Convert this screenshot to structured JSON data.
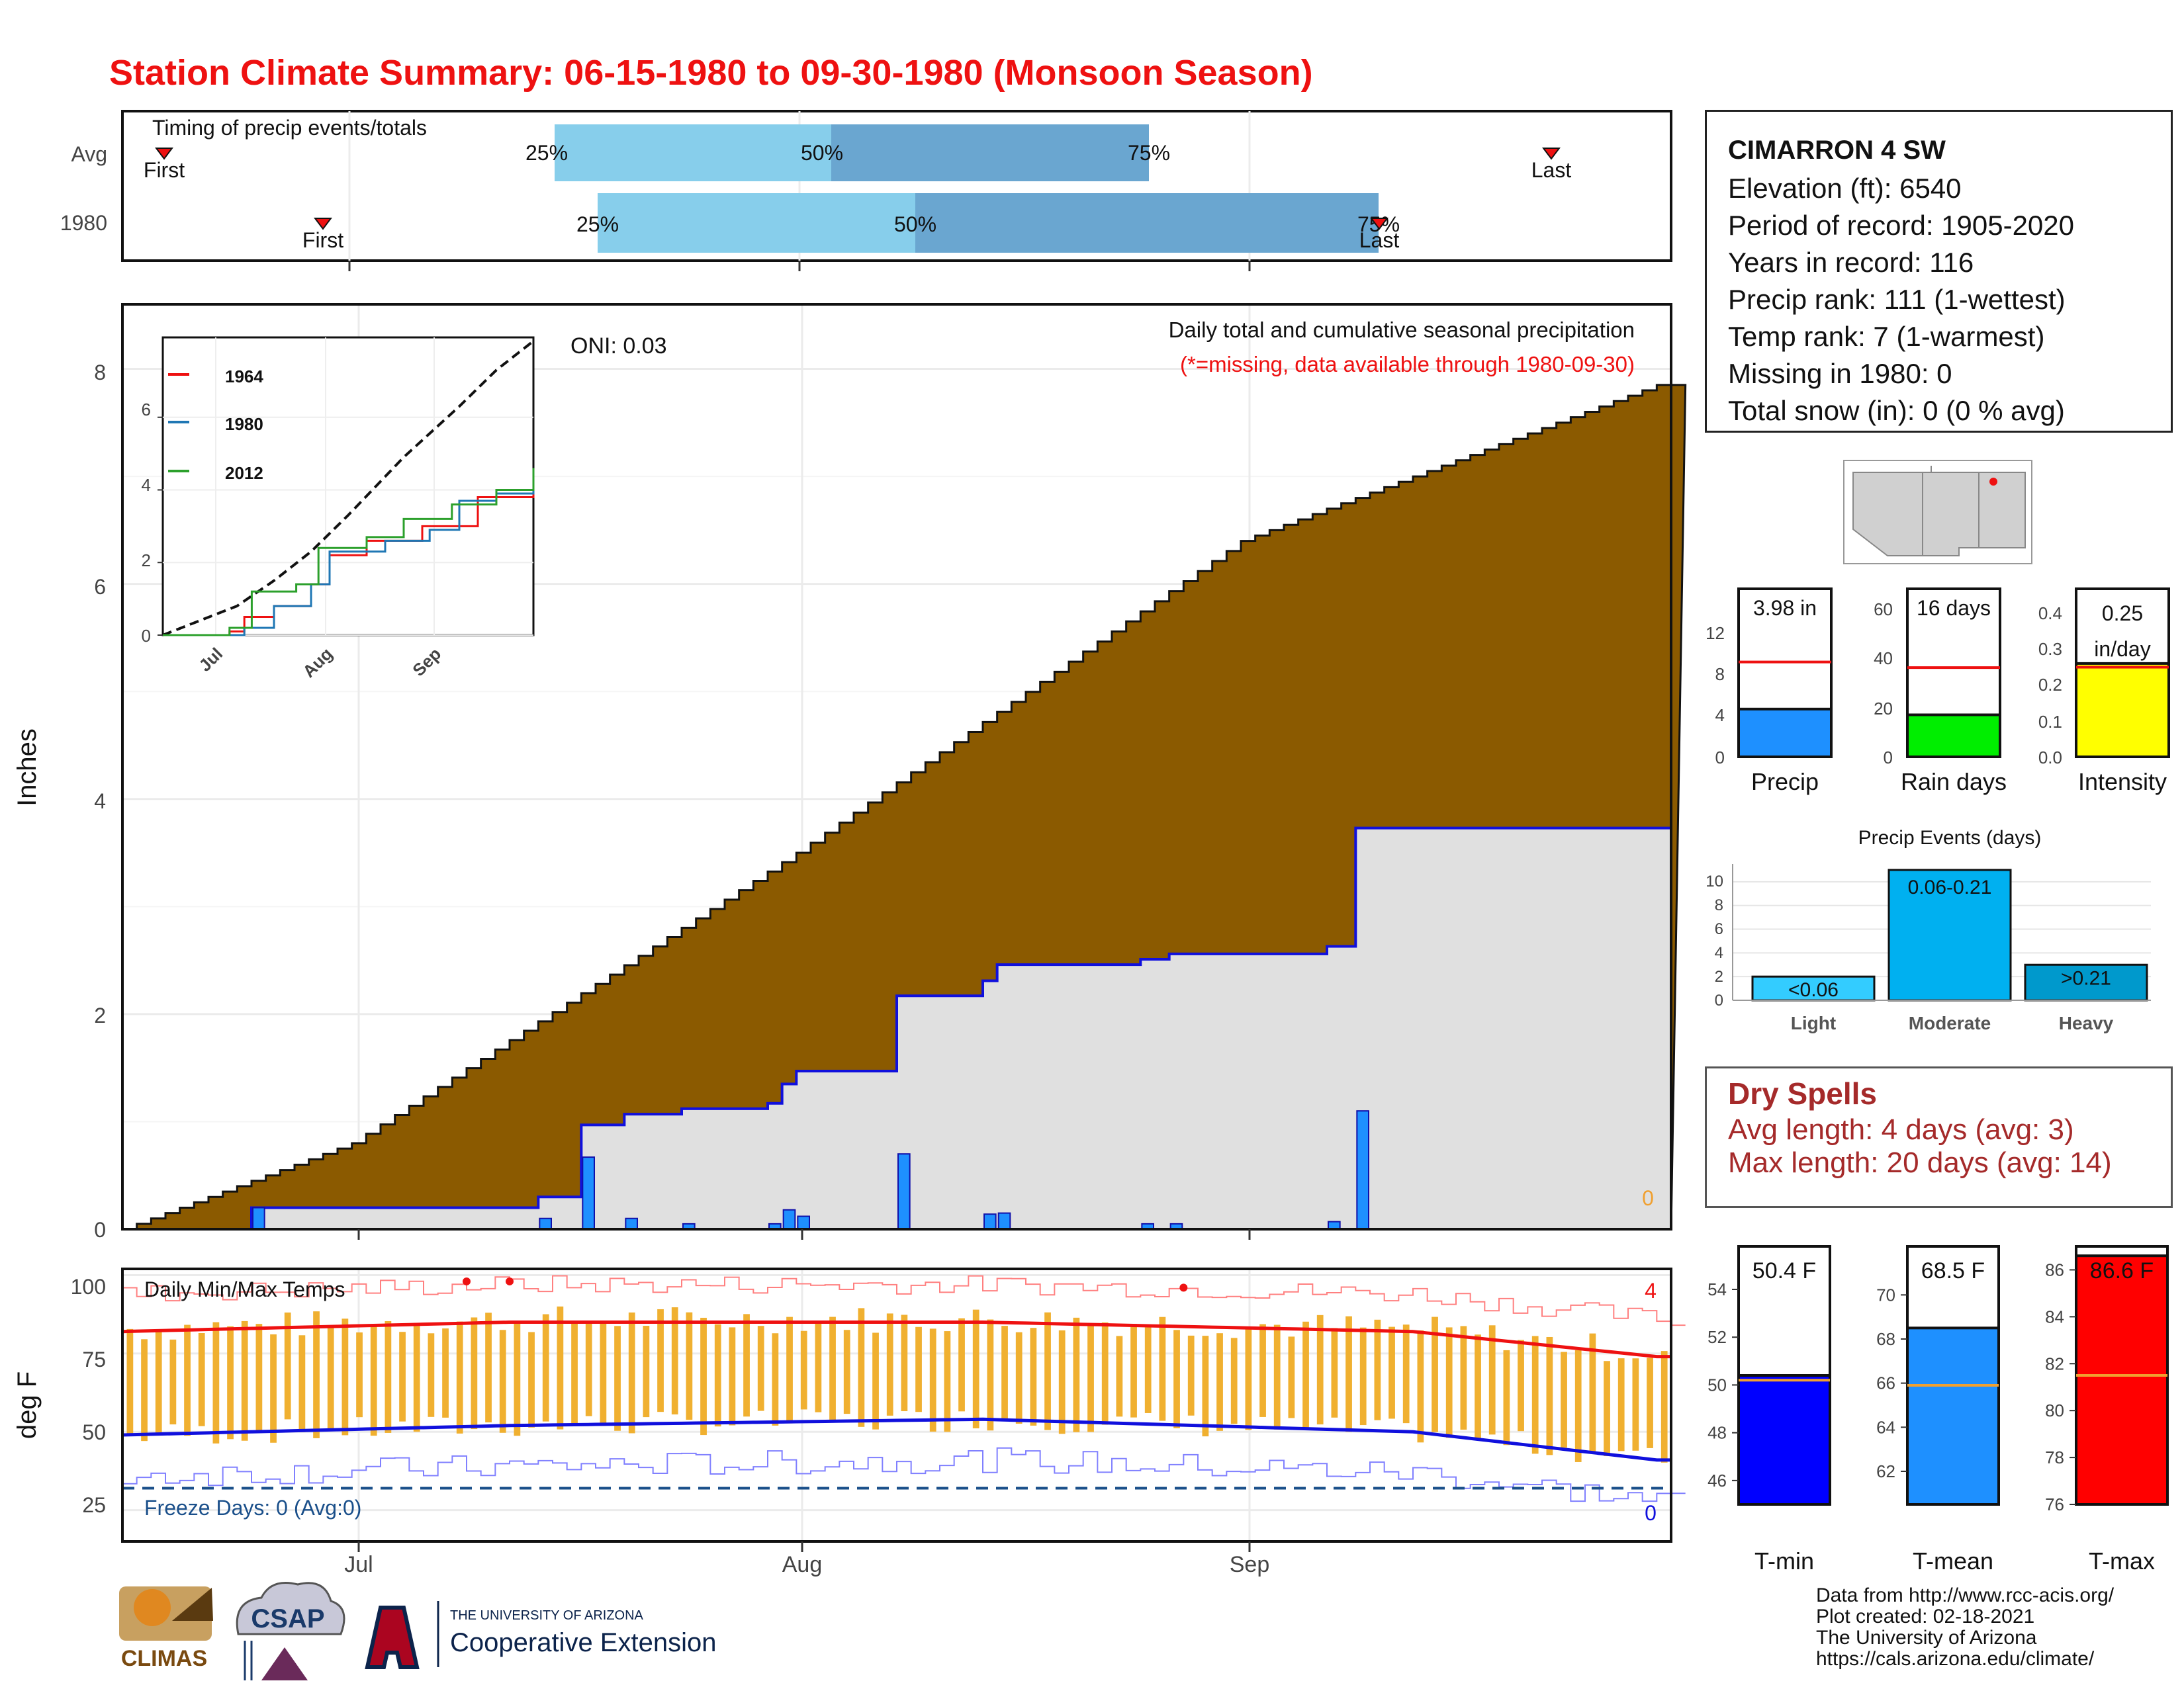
{
  "title": "Station Climate Summary: 06-15-1980 to 09-30-1980 (Monsoon Season)",
  "colors": {
    "title": "#ee1111",
    "cumulative_fill": "#8b5a00",
    "year_fill": "#e0e0e0",
    "year_line": "#1010dd",
    "daily_bar": "#1e90ff",
    "quartile_light": "#87ceeb",
    "quartile_dark": "#6aa6d0",
    "tmax": "#ee1111",
    "tmin": "#1010dd",
    "temp_bar": "#f0b030"
  },
  "station": {
    "name": "CIMARRON 4 SW",
    "lines": [
      "Elevation (ft): 6540",
      "Period of record: 1905-2020",
      "Years in record: 116",
      "Precip rank: 111 (1-wettest)",
      "Temp rank: 7 (1-warmest)",
      "Missing in 1980: 0",
      "Total snow (in): 0 (0 % avg)"
    ]
  },
  "timing": {
    "caption": "Timing of precip events/totals",
    "rows": [
      {
        "label": "Avg",
        "first": "First",
        "last": "Last",
        "q25": "25%",
        "q50": "50%",
        "q75": "75%"
      },
      {
        "label": "1980",
        "first": "First",
        "last": "Last",
        "q25": "25%",
        "q50": "50%",
        "q75": "75%"
      }
    ]
  },
  "main": {
    "ylabel": "Inches",
    "yticks": [
      "0",
      "2",
      "4",
      "6",
      "8"
    ],
    "oni": "ONI: 0.03",
    "caption1": "Daily total and cumulative seasonal precipitation",
    "caption2": "(*=missing, data available through 1980-09-30)",
    "missing_count": "0",
    "xticks": [
      "Jul",
      "Aug",
      "Sep"
    ]
  },
  "inset": {
    "legend": [
      "1964",
      "1980",
      "2012"
    ],
    "legend_colors": [
      "#ee1111",
      "#1f77b4",
      "#2ca02c"
    ],
    "yticks": [
      "0",
      "2",
      "4",
      "6"
    ],
    "xticks": [
      "Jul",
      "Aug",
      "Sep"
    ]
  },
  "temps": {
    "ylabel": "deg F",
    "caption": "Daily Min/Max Temps",
    "freeze": "Freeze Days: 0 (Avg:0)",
    "record_high_count": "4",
    "record_low_count": "0",
    "yticks": [
      "25",
      "50",
      "75",
      "100"
    ],
    "xticks": [
      "Jul",
      "Aug",
      "Sep"
    ]
  },
  "gauges": {
    "precip": {
      "label": "Precip",
      "value_text": "3.98 in",
      "value": 3.98,
      "avg": 7.9,
      "max": 14,
      "ticks": [
        "0",
        "4",
        "8",
        "12"
      ]
    },
    "rain_days": {
      "label": "Rain days",
      "value_text": "16 days",
      "value": 16,
      "avg": 34,
      "max": 64,
      "ticks": [
        "0",
        "20",
        "40",
        "60"
      ]
    },
    "intensity": {
      "label": "Intensity",
      "value_text1": "0.25",
      "value_text2": "in/day",
      "value": 0.25,
      "avg": 0.24,
      "max": 0.45,
      "ticks": [
        "0.0",
        "0.1",
        "0.2",
        "0.3",
        "0.4"
      ]
    }
  },
  "events": {
    "title": "Precip Events (days)",
    "yticks": [
      "0",
      "2",
      "4",
      "6",
      "8",
      "10"
    ],
    "categories": [
      "Light",
      "Moderate",
      "Heavy"
    ],
    "labels": [
      "<0.06",
      "0.06-0.21",
      ">0.21"
    ],
    "values": [
      2,
      11,
      3
    ]
  },
  "dry_spells": {
    "title": "Dry Spells",
    "avg": "Avg length: 4 days (avg: 3)",
    "max": "Max length: 20 days (avg: 14)"
  },
  "temp_gauges": {
    "tmin": {
      "label": "T-min",
      "value_text": "50.4 F",
      "value": 50.4,
      "avg": 50.2,
      "min": 45,
      "max": 55.8,
      "ticks": [
        "46",
        "48",
        "50",
        "52",
        "54"
      ]
    },
    "tmean": {
      "label": "T-mean",
      "value_text": "68.5 F",
      "value": 68.5,
      "avg": 65.9,
      "min": 60.5,
      "max": 72.2,
      "ticks": [
        "62",
        "64",
        "66",
        "68",
        "70"
      ]
    },
    "tmax": {
      "label": "T-max",
      "value_text": "86.6 F",
      "value": 86.6,
      "avg": 81.5,
      "min": 76,
      "max": 87,
      "ticks": [
        "76",
        "78",
        "80",
        "82",
        "84",
        "86"
      ]
    }
  },
  "credits": [
    "Data from http://www.rcc-acis.org/",
    "Plot created: 02-18-2021",
    "The University of Arizona",
    "https://cals.arizona.edu/climate/"
  ],
  "logos": {
    "climas": "CLIMAS",
    "csap": "CSAP",
    "ua_small": "THE UNIVERSITY OF ARIZONA",
    "ua_big": "Cooperative Extension"
  },
  "chart_data": [
    {
      "type": "area",
      "title": "Daily total and cumulative seasonal precipitation",
      "ylabel": "Inches",
      "ylim": [
        0,
        8.6
      ],
      "x": [
        "06-15",
        "07-01",
        "08-01",
        "09-01",
        "09-30"
      ],
      "series": [
        {
          "values": [
            0.0,
            0.8,
            3.5,
            6.4,
            7.85
          ]
        },
        {
          "name": "1980",
          "values": [
            0.0,
            0.2,
            1.4,
            2.8,
            3.98
          ]
        }
      ],
      "daily_events": [
        {
          "date": "06-24",
          "value": 0.2
        },
        {
          "date": "07-14",
          "value": 0.1
        },
        {
          "date": "07-17",
          "value": 0.67
        },
        {
          "date": "07-20",
          "value": 0.1
        },
        {
          "date": "07-24",
          "value": 0.05
        },
        {
          "date": "07-30",
          "value": 0.05
        },
        {
          "date": "07-31",
          "value": 0.18
        },
        {
          "date": "08-01",
          "value": 0.12
        },
        {
          "date": "08-08",
          "value": 0.7
        },
        {
          "date": "08-14",
          "value": 0.14
        },
        {
          "date": "08-15",
          "value": 0.15
        },
        {
          "date": "08-25",
          "value": 0.05
        },
        {
          "date": "08-27",
          "value": 0.05
        },
        {
          "date": "09-07",
          "value": 0.07
        },
        {
          "date": "09-09",
          "value": 1.1
        }
      ]
    },
    {
      "type": "line",
      "title": "Daily Min/Max Temps",
      "ylabel": "deg F",
      "ylim": [
        15,
        102
      ],
      "series": [
        {
          "name": "avg max",
          "values": [
            82,
            85,
            85,
            82,
            74
          ]
        },
        {
          "name": "avg min",
          "values": [
            49,
            52,
            54,
            50,
            41
          ]
        }
      ]
    }
  ]
}
